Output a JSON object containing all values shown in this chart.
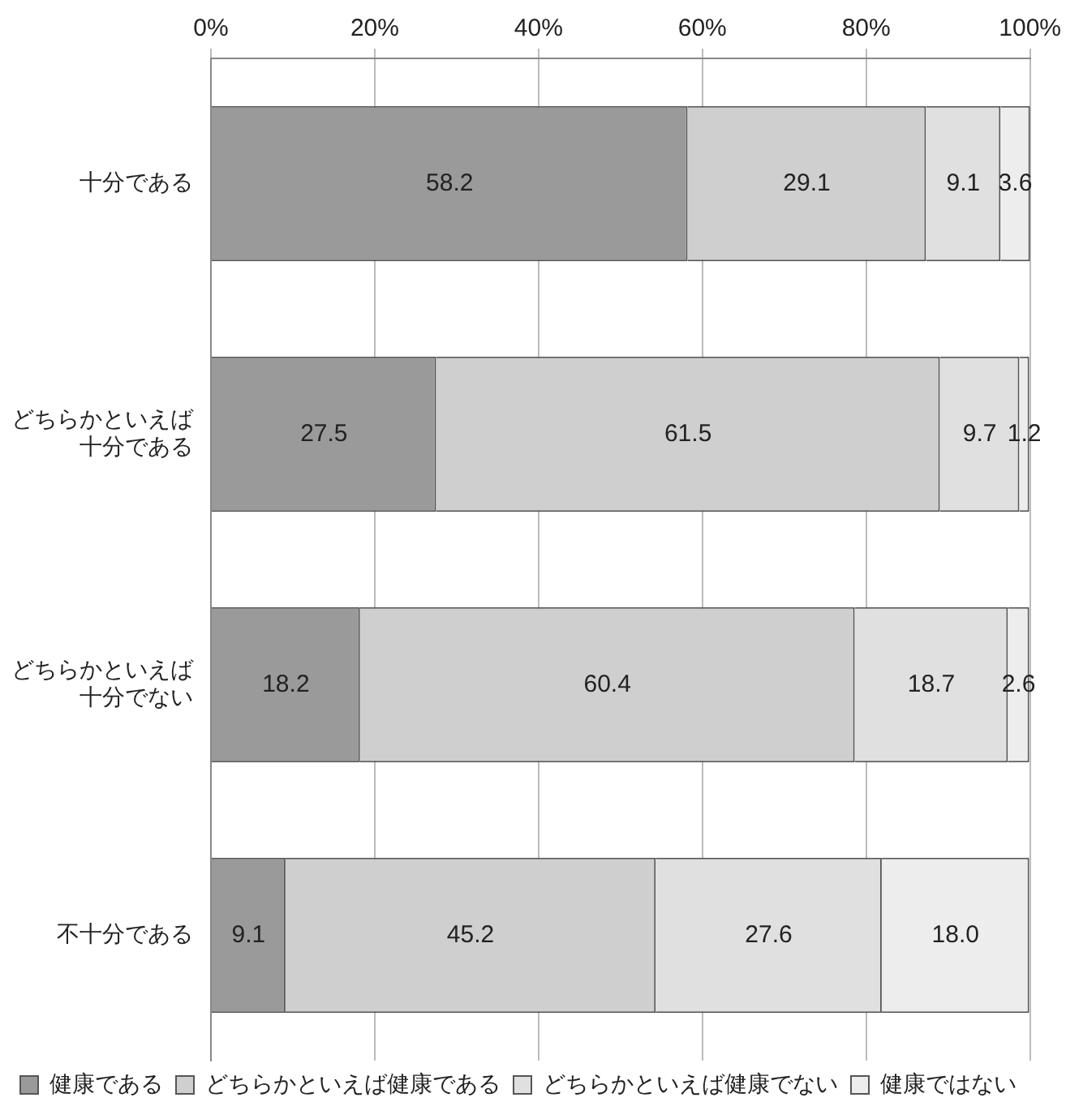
{
  "chart_data": {
    "type": "bar",
    "orientation": "horizontal",
    "stacked": true,
    "categories": [
      "十分である",
      "どちらかといえば十分である",
      "どちらかといえば十分でない",
      "不十分である"
    ],
    "series": [
      {
        "name": "健康である",
        "color": "#9a9a9a",
        "values": [
          58.2,
          27.5,
          18.2,
          9.1
        ],
        "value_labels": [
          "58.2",
          "27.5",
          "18.2",
          "9.1"
        ]
      },
      {
        "name": "どちらかといえば健康である",
        "color": "#cfcfcf",
        "values": [
          29.1,
          61.5,
          60.4,
          45.2
        ],
        "value_labels": [
          "29.1",
          "61.5",
          "60.4",
          "45.2"
        ]
      },
      {
        "name": "どちらかといえば健康でない",
        "color": "#e0e0e0",
        "values": [
          9.1,
          9.7,
          18.7,
          27.6
        ],
        "value_labels": [
          "9.1",
          "9.7",
          "18.7",
          "27.6"
        ]
      },
      {
        "name": "健康ではない",
        "color": "#ededed",
        "values": [
          3.6,
          1.2,
          2.6,
          18.0
        ],
        "value_labels": [
          "3.6",
          "1.2",
          "2.6",
          "18.0"
        ]
      }
    ],
    "xlim": [
      0,
      100
    ],
    "xticks": [
      {
        "value": 0,
        "label": "0%"
      },
      {
        "value": 20,
        "label": "20%"
      },
      {
        "value": 40,
        "label": "40%"
      },
      {
        "value": 60,
        "label": "60%"
      },
      {
        "value": 80,
        "label": "80%"
      },
      {
        "value": 100,
        "label": "100%"
      }
    ],
    "grid": "x",
    "legend": "bottom"
  }
}
